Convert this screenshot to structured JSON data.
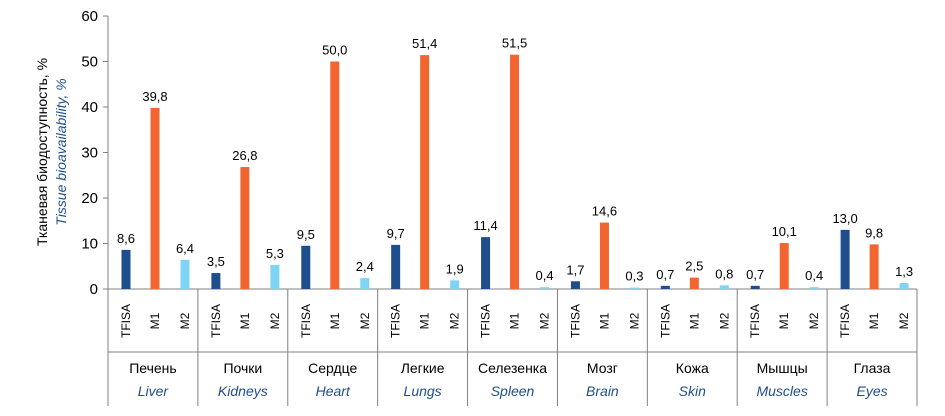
{
  "chart_data": {
    "type": "bar",
    "ylabel": "Тканевая биодоступность, %",
    "ylabel_en": "Tissue bioavailability, %",
    "ylim": [
      0,
      60
    ],
    "yticks": [
      "0",
      "10",
      "20",
      "30",
      "40",
      "50",
      "60"
    ],
    "subcategories": [
      "TFISA",
      "M1",
      "M2"
    ],
    "groups": [
      {
        "ru": "Печень",
        "en": "Liver"
      },
      {
        "ru": "Почки",
        "en": "Kidneys"
      },
      {
        "ru": "Сердце",
        "en": "Heart"
      },
      {
        "ru": "Легкие",
        "en": "Lungs"
      },
      {
        "ru": "Селезенка",
        "en": "Spleen"
      },
      {
        "ru": "Мозг",
        "en": "Brain"
      },
      {
        "ru": "Кожа",
        "en": "Skin"
      },
      {
        "ru": "Мышцы",
        "en": "Muscles"
      },
      {
        "ru": "Глаза",
        "en": "Eyes"
      }
    ],
    "series": [
      {
        "values": [
          8.6,
          3.5,
          9.5,
          9.7,
          11.4,
          1.7,
          0.7,
          0.7,
          13.0
        ],
        "labels": [
          "8,6",
          "3,5",
          "9,5",
          "9,7",
          "11,4",
          "1,7",
          "0,7",
          "0,7",
          "13,0"
        ],
        "color": "#1f4e8c"
      },
      {
        "values": [
          39.8,
          26.8,
          50.0,
          51.4,
          51.5,
          14.6,
          2.5,
          10.1,
          9.8
        ],
        "labels": [
          "39,8",
          "26,8",
          "50,0",
          "51,4",
          "51,5",
          "14,6",
          "2,5",
          "10,1",
          "9,8"
        ],
        "color": "#f26430"
      },
      {
        "values": [
          6.4,
          5.3,
          2.4,
          1.9,
          0.4,
          0.3,
          0.8,
          0.4,
          1.3
        ],
        "labels": [
          "6,4",
          "5,3",
          "2,4",
          "1,9",
          "0,4",
          "0,3",
          "0,8",
          "0,4",
          "1,3"
        ],
        "color": "#7fd3f5"
      }
    ],
    "grid": false,
    "colors": {
      "axis": "#808080",
      "en_text": "#1f4e8c"
    }
  }
}
